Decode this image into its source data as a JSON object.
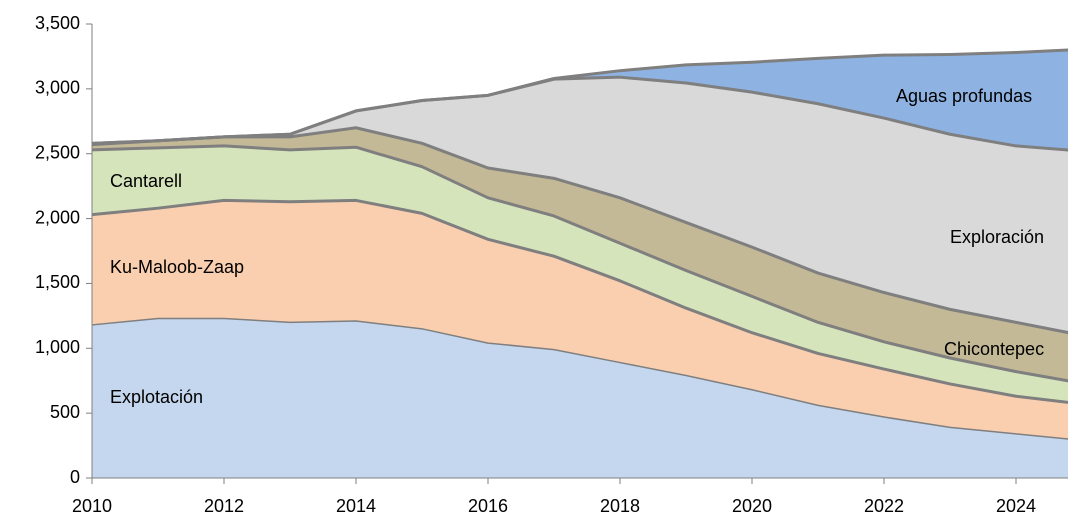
{
  "chart_data": {
    "type": "stacked-area",
    "x": [
      2010,
      2011,
      2012,
      2013,
      2014,
      2015,
      2016,
      2017,
      2018,
      2019,
      2020,
      2021,
      2022,
      2023,
      2024,
      2025
    ],
    "series": [
      {
        "name": "Explotación",
        "color": "#c5d7ee",
        "values": [
          1180,
          1230,
          1230,
          1200,
          1210,
          1150,
          1040,
          990,
          890,
          790,
          680,
          560,
          470,
          390,
          340,
          290
        ]
      },
      {
        "name": "Ku-Maloob-Zaap",
        "color": "#f9cfb0",
        "values": [
          850,
          850,
          910,
          930,
          930,
          890,
          800,
          720,
          630,
          520,
          440,
          400,
          370,
          335,
          290,
          280
        ]
      },
      {
        "name": "Cantarell",
        "color": "#d6e4bc",
        "values": [
          500,
          465,
          420,
          400,
          410,
          360,
          320,
          310,
          290,
          290,
          280,
          240,
          210,
          200,
          190,
          160
        ]
      },
      {
        "name": "Chicontepec",
        "color": "#c4b996",
        "values": [
          40,
          55,
          70,
          100,
          150,
          180,
          230,
          290,
          350,
          370,
          380,
          380,
          380,
          375,
          380,
          370
        ]
      },
      {
        "name": "Exploración",
        "color": "#d9d9d9",
        "values": [
          10,
          0,
          0,
          20,
          130,
          330,
          560,
          765,
          930,
          1075,
          1195,
          1305,
          1345,
          1350,
          1360,
          1420
        ]
      },
      {
        "name": "Aguas profundas",
        "color": "#8eb3e3",
        "values": [
          0,
          0,
          0,
          0,
          0,
          0,
          0,
          5,
          50,
          140,
          230,
          350,
          485,
          615,
          720,
          785
        ]
      }
    ],
    "xlim": [
      2010,
      2025
    ],
    "xticks": [
      2010,
      2012,
      2014,
      2016,
      2018,
      2020,
      2022,
      2024
    ],
    "ylim": [
      0,
      3500
    ],
    "yticks": [
      0,
      500,
      {
        "value": 1000,
        "label": "1,000"
      },
      {
        "value": 1500,
        "label": "1,500"
      },
      {
        "value": 2000,
        "label": "2,000"
      },
      {
        "value": 2500,
        "label": "2,500"
      },
      {
        "value": 3000,
        "label": "3,000"
      },
      {
        "value": 3500,
        "label": "3,500"
      }
    ],
    "grid": false
  }
}
